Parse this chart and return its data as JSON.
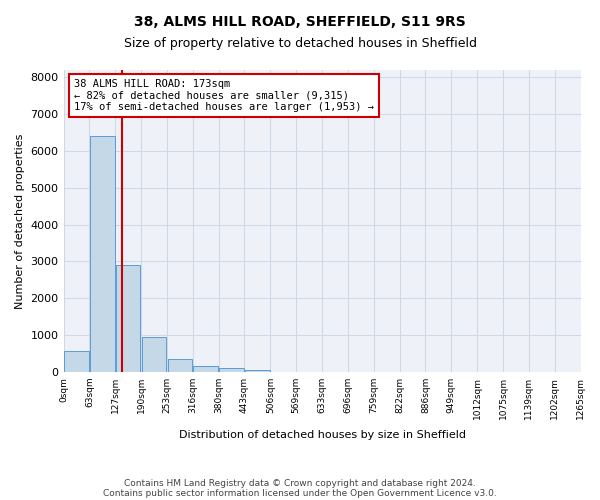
{
  "title1": "38, ALMS HILL ROAD, SHEFFIELD, S11 9RS",
  "title2": "Size of property relative to detached houses in Sheffield",
  "xlabel": "Distribution of detached houses by size in Sheffield",
  "ylabel": "Number of detached properties",
  "footnote1": "Contains HM Land Registry data © Crown copyright and database right 2024.",
  "footnote2": "Contains public sector information licensed under the Open Government Licence v3.0.",
  "annotation_line1": "38 ALMS HILL ROAD: 173sqm",
  "annotation_line2": "← 82% of detached houses are smaller (9,315)",
  "annotation_line3": "17% of semi-detached houses are larger (1,953) →",
  "bar_color": "#c5d8e8",
  "bar_edge_color": "#5b9bd5",
  "grid_color": "#d0d8e8",
  "background_color": "#eef2f8",
  "red_line_color": "#cc0000",
  "annotation_box_color": "#cc0000",
  "bin_edges": [
    "0sqm",
    "63sqm",
    "127sqm",
    "190sqm",
    "253sqm",
    "316sqm",
    "380sqm",
    "443sqm",
    "506sqm",
    "569sqm",
    "633sqm",
    "696sqm",
    "759sqm",
    "822sqm",
    "886sqm",
    "949sqm",
    "1012sqm",
    "1075sqm",
    "1139sqm",
    "1202sqm",
    "1265sqm"
  ],
  "bar_values": [
    580,
    6400,
    2900,
    960,
    350,
    160,
    95,
    65,
    0,
    0,
    0,
    0,
    0,
    0,
    0,
    0,
    0,
    0,
    0,
    0
  ],
  "ylim": [
    0,
    8200
  ],
  "yticks": [
    0,
    1000,
    2000,
    3000,
    4000,
    5000,
    6000,
    7000,
    8000
  ],
  "red_line_x": 1.746
}
